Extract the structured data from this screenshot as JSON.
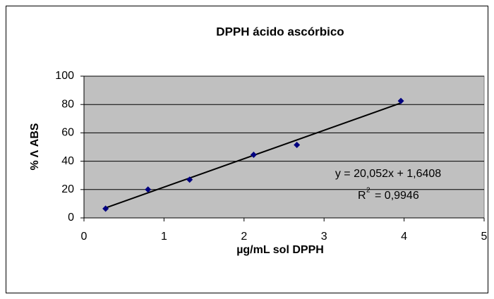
{
  "chart_data": {
    "type": "scatter",
    "title": "DPPH ácido ascórbico",
    "x_label": "µg/mL sol DPPH",
    "y_label": "% Λ ABS",
    "series": [
      {
        "name": "DPPH ácido ascórbico",
        "color": "#000080",
        "x": [
          0.27,
          0.8,
          1.32,
          2.12,
          2.66,
          3.96
        ],
        "values": [
          6.5,
          20,
          27,
          44.5,
          51.5,
          82.5
        ]
      }
    ],
    "trendline": {
      "equation": "y = 20,052x + 1,6408",
      "slope": 20.052,
      "intercept": 1.6408,
      "r2_prefix": "R",
      "r2_sup": "2",
      "r2_text": "= 0,9946",
      "color": "#000000"
    },
    "xlim": [
      0,
      5
    ],
    "xticks": [
      0,
      1,
      2,
      3,
      4,
      5
    ],
    "ylim": [
      0,
      100
    ],
    "yticks": [
      0,
      20,
      40,
      60,
      80,
      100
    ],
    "grid": true
  }
}
